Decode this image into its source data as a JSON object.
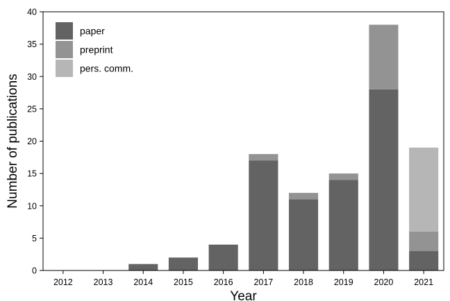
{
  "chart_data": {
    "type": "bar",
    "stacked": true,
    "categories": [
      "2012",
      "2013",
      "2014",
      "2015",
      "2016",
      "2017",
      "2018",
      "2019",
      "2020",
      "2021"
    ],
    "series": [
      {
        "name": "paper",
        "values": [
          0,
          0,
          1,
          2,
          4,
          17,
          11,
          14,
          28,
          3
        ],
        "color": "#636363"
      },
      {
        "name": "preprint",
        "values": [
          0,
          0,
          0,
          0,
          0,
          1,
          1,
          1,
          10,
          3
        ],
        "color": "#939393"
      },
      {
        "name": "pers. comm.",
        "values": [
          0,
          0,
          0,
          0,
          0,
          0,
          0,
          0,
          0,
          13
        ],
        "color": "#b6b6b6"
      }
    ],
    "xlabel": "Year",
    "ylabel": "Number of publications",
    "ylim": [
      0,
      40
    ],
    "yticks": [
      0,
      5,
      10,
      15,
      20,
      25,
      30,
      35,
      40
    ],
    "grid": false,
    "legend_position": "top-left"
  }
}
